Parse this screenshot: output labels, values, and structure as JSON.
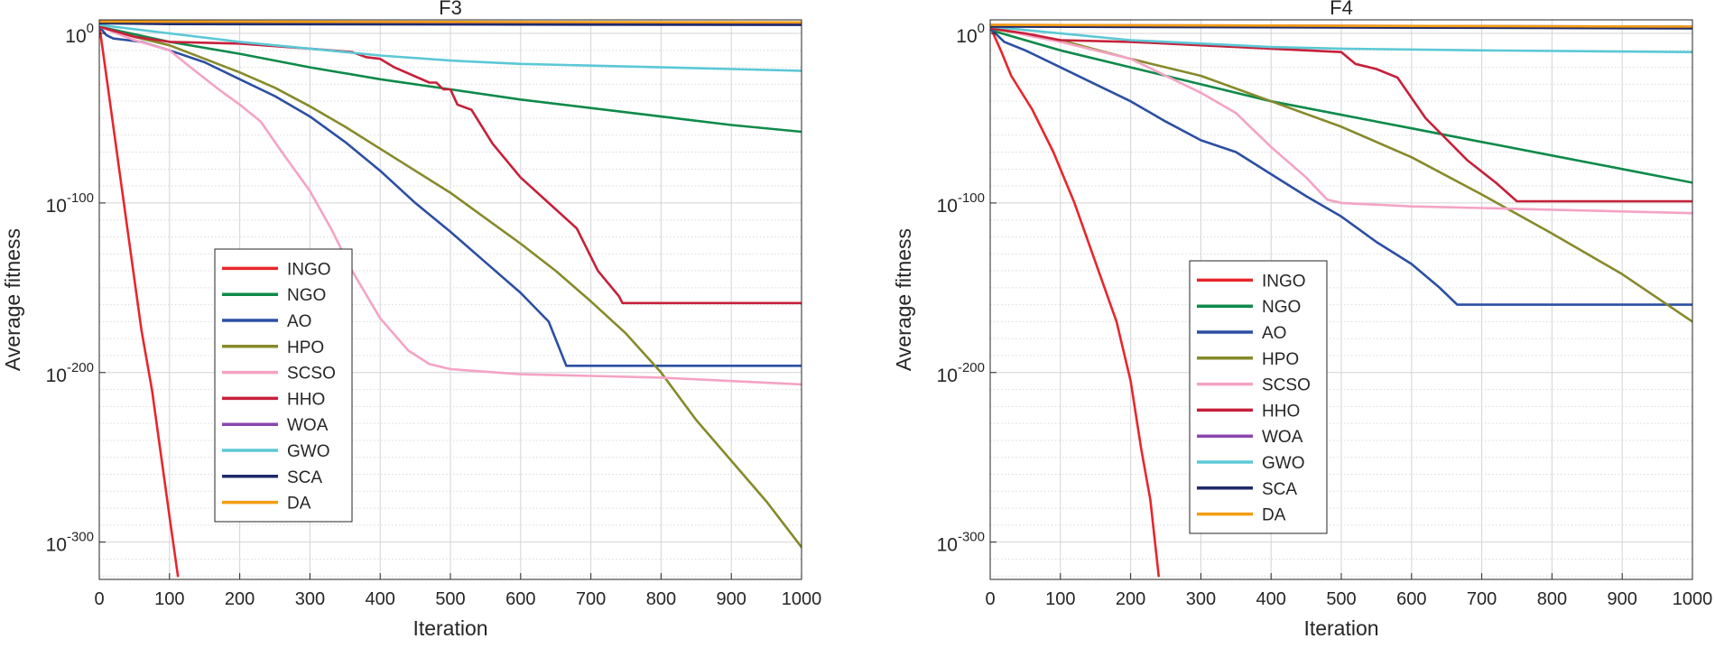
{
  "chart_data": [
    {
      "type": "line",
      "title": "F3",
      "xlabel": "Iteration",
      "ylabel": "Average fitness",
      "yscale": "log",
      "xlim": [
        0,
        1000
      ],
      "ylim_exponent": [
        -322,
        8
      ],
      "x_ticks": [
        "0",
        "100",
        "200",
        "300",
        "400",
        "500",
        "600",
        "700",
        "800",
        "900",
        "1000"
      ],
      "y_ticks": [
        {
          "base": "10",
          "exp": "0"
        },
        {
          "base": "10",
          "exp": "-100"
        },
        {
          "base": "10",
          "exp": "-200"
        },
        {
          "base": "10",
          "exp": "-300"
        }
      ],
      "grid": true,
      "legend_position": "lower-left",
      "series": [
        {
          "name": "INGO",
          "color": "#e8262c",
          "points": [
            [
              0,
              5
            ],
            [
              5,
              -10
            ],
            [
              15,
              -40
            ],
            [
              30,
              -85
            ],
            [
              45,
              -130
            ],
            [
              60,
              -175
            ],
            [
              75,
              -210
            ],
            [
              90,
              -255
            ],
            [
              100,
              -285
            ],
            [
              112,
              -320
            ]
          ]
        },
        {
          "name": "NGO",
          "color": "#0e8a4a",
          "points": [
            [
              0,
              4
            ],
            [
              100,
              -5
            ],
            [
              200,
              -12
            ],
            [
              300,
              -20
            ],
            [
              400,
              -27
            ],
            [
              500,
              -33
            ],
            [
              600,
              -39
            ],
            [
              700,
              -44
            ],
            [
              800,
              -49
            ],
            [
              900,
              -54
            ],
            [
              1000,
              -58
            ]
          ]
        },
        {
          "name": "AO",
          "color": "#2b4fa2",
          "points": [
            [
              0,
              4
            ],
            [
              10,
              -1
            ],
            [
              20,
              -3
            ],
            [
              40,
              -4
            ],
            [
              60,
              -5
            ],
            [
              100,
              -10
            ],
            [
              150,
              -17
            ],
            [
              200,
              -27
            ],
            [
              250,
              -37
            ],
            [
              300,
              -49
            ],
            [
              350,
              -64
            ],
            [
              400,
              -81
            ],
            [
              450,
              -100
            ],
            [
              500,
              -117
            ],
            [
              550,
              -135
            ],
            [
              600,
              -153
            ],
            [
              640,
              -170
            ],
            [
              665,
              -196
            ],
            [
              1000,
              -196
            ]
          ]
        },
        {
          "name": "HPO",
          "color": "#868a2a",
          "points": [
            [
              0,
              4
            ],
            [
              50,
              -2
            ],
            [
              100,
              -7
            ],
            [
              150,
              -15
            ],
            [
              200,
              -23
            ],
            [
              250,
              -32
            ],
            [
              300,
              -43
            ],
            [
              350,
              -55
            ],
            [
              400,
              -68
            ],
            [
              450,
              -81
            ],
            [
              500,
              -94
            ],
            [
              550,
              -109
            ],
            [
              600,
              -124
            ],
            [
              650,
              -140
            ],
            [
              700,
              -158
            ],
            [
              750,
              -177
            ],
            [
              800,
              -200
            ],
            [
              850,
              -228
            ],
            [
              900,
              -252
            ],
            [
              950,
              -276
            ],
            [
              1000,
              -303
            ]
          ]
        },
        {
          "name": "SCSO",
          "color": "#f4a3c4",
          "points": [
            [
              0,
              4
            ],
            [
              50,
              -4
            ],
            [
              100,
              -10
            ],
            [
              130,
              -20
            ],
            [
              170,
              -33
            ],
            [
              200,
              -42
            ],
            [
              230,
              -52
            ],
            [
              260,
              -70
            ],
            [
              300,
              -93
            ],
            [
              330,
              -115
            ],
            [
              360,
              -140
            ],
            [
              400,
              -168
            ],
            [
              440,
              -187
            ],
            [
              470,
              -195
            ],
            [
              500,
              -198
            ],
            [
              600,
              -201
            ],
            [
              700,
              -202
            ],
            [
              800,
              -203
            ],
            [
              900,
              -205
            ],
            [
              1000,
              -207
            ]
          ]
        },
        {
          "name": "HHO",
          "color": "#c6203a",
          "points": [
            [
              0,
              4
            ],
            [
              50,
              -2
            ],
            [
              100,
              -5
            ],
            [
              200,
              -6
            ],
            [
              300,
              -9
            ],
            [
              360,
              -11
            ],
            [
              380,
              -14
            ],
            [
              400,
              -15
            ],
            [
              420,
              -20
            ],
            [
              470,
              -29
            ],
            [
              480,
              -29
            ],
            [
              490,
              -33
            ],
            [
              500,
              -33
            ],
            [
              510,
              -42
            ],
            [
              530,
              -45
            ],
            [
              560,
              -65
            ],
            [
              600,
              -85
            ],
            [
              640,
              -100
            ],
            [
              680,
              -115
            ],
            [
              710,
              -140
            ],
            [
              740,
              -155
            ],
            [
              745,
              -159
            ],
            [
              1000,
              -159
            ]
          ]
        },
        {
          "name": "WOA",
          "color": "#8a46ae",
          "points": [
            [
              0,
              7
            ],
            [
              1000,
              6
            ]
          ]
        },
        {
          "name": "GWO",
          "color": "#5bc8d6",
          "points": [
            [
              0,
              5
            ],
            [
              100,
              0
            ],
            [
              200,
              -5
            ],
            [
              300,
              -9
            ],
            [
              400,
              -13
            ],
            [
              500,
              -16
            ],
            [
              600,
              -18
            ],
            [
              700,
              -19
            ],
            [
              800,
              -20
            ],
            [
              900,
              -21
            ],
            [
              1000,
              -22
            ]
          ]
        },
        {
          "name": "SCA",
          "color": "#1f2a6b",
          "points": [
            [
              0,
              6
            ],
            [
              100,
              5.5
            ],
            [
              1000,
              5
            ]
          ]
        },
        {
          "name": "DA",
          "color": "#f39c12",
          "points": [
            [
              0,
              7
            ],
            [
              1000,
              6.5
            ]
          ]
        }
      ]
    },
    {
      "type": "line",
      "title": "F4",
      "xlabel": "Iteration",
      "ylabel": "Average fitness",
      "yscale": "log",
      "xlim": [
        0,
        1000
      ],
      "ylim_exponent": [
        -322,
        8
      ],
      "x_ticks": [
        "0",
        "100",
        "200",
        "300",
        "400",
        "500",
        "600",
        "700",
        "800",
        "900",
        "1000"
      ],
      "y_ticks": [
        {
          "base": "10",
          "exp": "0"
        },
        {
          "base": "10",
          "exp": "-100"
        },
        {
          "base": "10",
          "exp": "-200"
        },
        {
          "base": "10",
          "exp": "-300"
        }
      ],
      "grid": true,
      "legend_position": "lower-left",
      "series": [
        {
          "name": "INGO",
          "color": "#e8262c",
          "points": [
            [
              0,
              4
            ],
            [
              15,
              -10
            ],
            [
              30,
              -25
            ],
            [
              60,
              -45
            ],
            [
              90,
              -70
            ],
            [
              120,
              -100
            ],
            [
              150,
              -135
            ],
            [
              180,
              -170
            ],
            [
              200,
              -205
            ],
            [
              215,
              -245
            ],
            [
              228,
              -275
            ],
            [
              240,
              -320
            ]
          ]
        },
        {
          "name": "NGO",
          "color": "#0e8a4a",
          "points": [
            [
              0,
              2
            ],
            [
              100,
              -10
            ],
            [
              200,
              -20
            ],
            [
              300,
              -30
            ],
            [
              400,
              -40
            ],
            [
              500,
              -48
            ],
            [
              600,
              -56
            ],
            [
              700,
              -64
            ],
            [
              800,
              -72
            ],
            [
              900,
              -80
            ],
            [
              1000,
              -88
            ]
          ]
        },
        {
          "name": "AO",
          "color": "#2b4fa2",
          "points": [
            [
              0,
              3
            ],
            [
              20,
              -5
            ],
            [
              50,
              -10
            ],
            [
              100,
              -20
            ],
            [
              150,
              -30
            ],
            [
              200,
              -40
            ],
            [
              250,
              -52
            ],
            [
              300,
              -63
            ],
            [
              350,
              -70
            ],
            [
              400,
              -83
            ],
            [
              450,
              -96
            ],
            [
              500,
              -108
            ],
            [
              550,
              -123
            ],
            [
              600,
              -136
            ],
            [
              640,
              -150
            ],
            [
              665,
              -160
            ],
            [
              1000,
              -160
            ]
          ]
        },
        {
          "name": "HPO",
          "color": "#868a2a",
          "points": [
            [
              0,
              3
            ],
            [
              100,
              -4
            ],
            [
              200,
              -15
            ],
            [
              300,
              -25
            ],
            [
              400,
              -40
            ],
            [
              500,
              -55
            ],
            [
              600,
              -73
            ],
            [
              700,
              -95
            ],
            [
              800,
              -118
            ],
            [
              900,
              -142
            ],
            [
              1000,
              -170
            ]
          ]
        },
        {
          "name": "SCSO",
          "color": "#f4a3c4",
          "points": [
            [
              0,
              4
            ],
            [
              50,
              -1
            ],
            [
              100,
              -5
            ],
            [
              200,
              -15
            ],
            [
              300,
              -35
            ],
            [
              350,
              -47
            ],
            [
              400,
              -67
            ],
            [
              450,
              -85
            ],
            [
              480,
              -98
            ],
            [
              500,
              -100
            ],
            [
              600,
              -102
            ],
            [
              700,
              -103
            ],
            [
              800,
              -104
            ],
            [
              900,
              -105
            ],
            [
              1000,
              -106
            ]
          ]
        },
        {
          "name": "HHO",
          "color": "#c6203a",
          "points": [
            [
              0,
              3
            ],
            [
              50,
              0
            ],
            [
              100,
              -4
            ],
            [
              200,
              -5
            ],
            [
              300,
              -7
            ],
            [
              400,
              -9
            ],
            [
              450,
              -10
            ],
            [
              500,
              -11
            ],
            [
              520,
              -18
            ],
            [
              550,
              -21
            ],
            [
              580,
              -26
            ],
            [
              620,
              -50
            ],
            [
              680,
              -75
            ],
            [
              720,
              -88
            ],
            [
              750,
              -99
            ],
            [
              1000,
              -99
            ]
          ]
        },
        {
          "name": "WOA",
          "color": "#8a46ae",
          "points": [
            [
              0,
              5
            ],
            [
              1000,
              4
            ]
          ]
        },
        {
          "name": "GWO",
          "color": "#5bc8d6",
          "points": [
            [
              0,
              4
            ],
            [
              200,
              -4
            ],
            [
              400,
              -8
            ],
            [
              500,
              -9
            ],
            [
              700,
              -10
            ],
            [
              1000,
              -11
            ]
          ]
        },
        {
          "name": "SCA",
          "color": "#1f2a6b",
          "points": [
            [
              0,
              4
            ],
            [
              1000,
              3
            ]
          ]
        },
        {
          "name": "DA",
          "color": "#f39c12",
          "points": [
            [
              0,
              5
            ],
            [
              1000,
              4
            ]
          ]
        }
      ]
    }
  ]
}
